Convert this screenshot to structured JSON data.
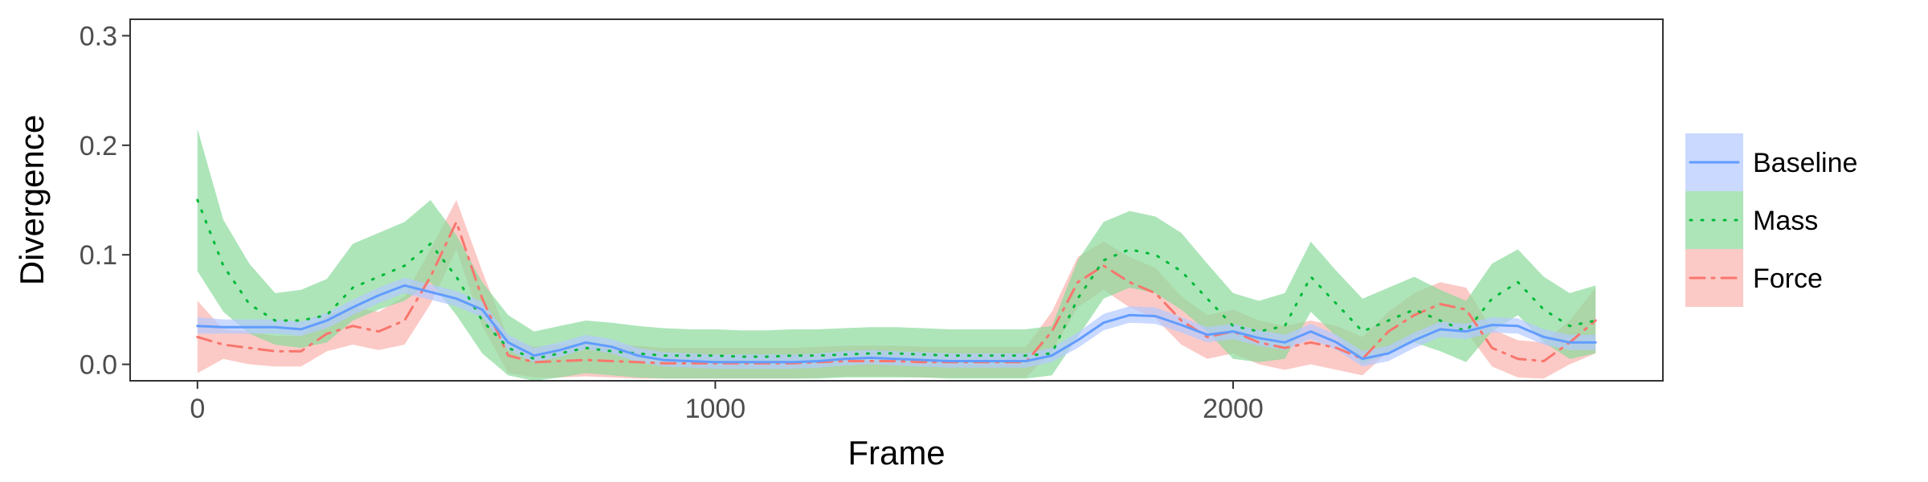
{
  "chart_data": {
    "type": "line",
    "xlabel": "Frame",
    "ylabel": "Divergence",
    "xlim": [
      -130,
      2830
    ],
    "ylim": [
      -0.015,
      0.315
    ],
    "xticks": [
      0,
      1000,
      2000
    ],
    "xtick_labels": [
      "0",
      "1000",
      "2000"
    ],
    "yticks": [
      0.0,
      0.1,
      0.2,
      0.3
    ],
    "ytick_labels": [
      "0.0",
      "0.1",
      "0.2",
      "0.3"
    ],
    "grid": false,
    "legend_position": "right",
    "x": [
      0,
      50,
      100,
      150,
      200,
      250,
      300,
      350,
      400,
      450,
      500,
      550,
      600,
      650,
      700,
      750,
      800,
      850,
      900,
      950,
      1000,
      1050,
      1100,
      1150,
      1200,
      1250,
      1300,
      1350,
      1400,
      1450,
      1500,
      1550,
      1600,
      1650,
      1700,
      1750,
      1800,
      1850,
      1900,
      1950,
      2000,
      2050,
      2100,
      2150,
      2200,
      2250,
      2300,
      2350,
      2400,
      2450,
      2500,
      2550,
      2600,
      2650,
      2700
    ],
    "series": [
      {
        "name": "Baseline",
        "color": "#619CFF",
        "fill": "#B3C9FF",
        "dash": "solid",
        "values": [
          0.035,
          0.034,
          0.034,
          0.034,
          0.032,
          0.04,
          0.052,
          0.063,
          0.072,
          0.066,
          0.06,
          0.05,
          0.02,
          0.008,
          0.013,
          0.02,
          0.016,
          0.008,
          0.004,
          0.003,
          0.002,
          0.002,
          0.002,
          0.002,
          0.003,
          0.005,
          0.006,
          0.005,
          0.004,
          0.003,
          0.003,
          0.003,
          0.003,
          0.008,
          0.022,
          0.038,
          0.045,
          0.044,
          0.036,
          0.027,
          0.03,
          0.024,
          0.02,
          0.03,
          0.02,
          0.005,
          0.01,
          0.022,
          0.032,
          0.03,
          0.036,
          0.035,
          0.025,
          0.02,
          0.02
        ],
        "lower": [
          0.028,
          0.028,
          0.028,
          0.028,
          0.026,
          0.033,
          0.045,
          0.056,
          0.065,
          0.059,
          0.053,
          0.043,
          0.013,
          0.002,
          0.007,
          0.014,
          0.01,
          0.002,
          -0.002,
          -0.003,
          -0.004,
          -0.004,
          -0.004,
          -0.004,
          -0.003,
          -0.001,
          0.0,
          -0.001,
          -0.002,
          -0.003,
          -0.003,
          -0.003,
          -0.003,
          0.002,
          0.015,
          0.031,
          0.038,
          0.037,
          0.029,
          0.02,
          0.023,
          0.017,
          0.013,
          0.023,
          0.013,
          -0.002,
          0.003,
          0.015,
          0.025,
          0.023,
          0.029,
          0.028,
          0.018,
          0.013,
          0.013
        ],
        "upper": [
          0.043,
          0.041,
          0.041,
          0.041,
          0.039,
          0.047,
          0.059,
          0.07,
          0.079,
          0.073,
          0.067,
          0.057,
          0.027,
          0.015,
          0.02,
          0.027,
          0.023,
          0.015,
          0.011,
          0.01,
          0.009,
          0.009,
          0.009,
          0.009,
          0.01,
          0.012,
          0.013,
          0.012,
          0.011,
          0.01,
          0.01,
          0.01,
          0.01,
          0.015,
          0.029,
          0.046,
          0.053,
          0.052,
          0.043,
          0.034,
          0.037,
          0.031,
          0.027,
          0.037,
          0.027,
          0.012,
          0.017,
          0.029,
          0.039,
          0.037,
          0.043,
          0.042,
          0.032,
          0.027,
          0.027
        ]
      },
      {
        "name": "Mass",
        "color": "#00BA38",
        "fill": "#8ADA9B",
        "dash": "dotted",
        "values": [
          0.15,
          0.09,
          0.055,
          0.04,
          0.04,
          0.045,
          0.07,
          0.08,
          0.09,
          0.11,
          0.08,
          0.04,
          0.015,
          0.005,
          0.01,
          0.015,
          0.012,
          0.01,
          0.008,
          0.008,
          0.008,
          0.007,
          0.007,
          0.008,
          0.008,
          0.009,
          0.01,
          0.01,
          0.009,
          0.008,
          0.008,
          0.008,
          0.008,
          0.01,
          0.06,
          0.095,
          0.105,
          0.1,
          0.085,
          0.06,
          0.035,
          0.03,
          0.035,
          0.08,
          0.055,
          0.03,
          0.04,
          0.05,
          0.04,
          0.03,
          0.06,
          0.075,
          0.05,
          0.035,
          0.04
        ],
        "lower": [
          0.085,
          0.048,
          0.028,
          0.018,
          0.015,
          0.02,
          0.04,
          0.05,
          0.058,
          0.075,
          0.045,
          0.01,
          -0.01,
          -0.015,
          -0.012,
          -0.008,
          -0.01,
          -0.012,
          -0.013,
          -0.013,
          -0.013,
          -0.013,
          -0.013,
          -0.013,
          -0.013,
          -0.012,
          -0.012,
          -0.012,
          -0.012,
          -0.013,
          -0.013,
          -0.013,
          -0.013,
          -0.01,
          0.025,
          0.06,
          0.07,
          0.065,
          0.05,
          0.03,
          0.005,
          0.002,
          0.005,
          0.048,
          0.025,
          0.0,
          0.01,
          0.02,
          0.012,
          0.002,
          0.03,
          0.045,
          0.02,
          0.005,
          0.01
        ],
        "upper": [
          0.215,
          0.132,
          0.092,
          0.065,
          0.068,
          0.078,
          0.11,
          0.12,
          0.13,
          0.15,
          0.118,
          0.075,
          0.045,
          0.03,
          0.035,
          0.04,
          0.038,
          0.035,
          0.033,
          0.032,
          0.032,
          0.031,
          0.031,
          0.032,
          0.032,
          0.033,
          0.034,
          0.034,
          0.033,
          0.032,
          0.032,
          0.032,
          0.032,
          0.035,
          0.095,
          0.13,
          0.14,
          0.135,
          0.12,
          0.092,
          0.065,
          0.058,
          0.065,
          0.112,
          0.085,
          0.06,
          0.07,
          0.08,
          0.068,
          0.058,
          0.092,
          0.105,
          0.08,
          0.065,
          0.072
        ]
      },
      {
        "name": "Force",
        "color": "#F8766D",
        "fill": "#F9B3AE",
        "dash": "dashdot",
        "values": [
          0.025,
          0.018,
          0.015,
          0.012,
          0.012,
          0.028,
          0.035,
          0.03,
          0.04,
          0.08,
          0.13,
          0.06,
          0.008,
          0.002,
          0.003,
          0.004,
          0.003,
          0.002,
          0.001,
          0.001,
          0.001,
          0.001,
          0.001,
          0.001,
          0.002,
          0.003,
          0.003,
          0.003,
          0.002,
          0.002,
          0.002,
          0.002,
          0.002,
          0.03,
          0.075,
          0.09,
          0.075,
          0.065,
          0.04,
          0.025,
          0.03,
          0.02,
          0.015,
          0.02,
          0.015,
          0.005,
          0.03,
          0.045,
          0.055,
          0.05,
          0.015,
          0.005,
          0.003,
          0.02,
          0.04
        ],
        "lower": [
          -0.008,
          0.005,
          0.0,
          -0.002,
          -0.002,
          0.012,
          0.018,
          0.013,
          0.018,
          0.055,
          0.105,
          0.035,
          -0.008,
          -0.012,
          -0.012,
          -0.011,
          -0.012,
          -0.013,
          -0.013,
          -0.013,
          -0.013,
          -0.013,
          -0.013,
          -0.013,
          -0.012,
          -0.011,
          -0.011,
          -0.011,
          -0.012,
          -0.012,
          -0.012,
          -0.012,
          -0.012,
          0.012,
          0.052,
          0.068,
          0.052,
          0.042,
          0.018,
          0.005,
          0.01,
          0.0,
          -0.005,
          0.0,
          -0.005,
          -0.01,
          0.012,
          0.025,
          0.035,
          0.03,
          -0.002,
          -0.012,
          -0.013,
          0.0,
          0.01
        ],
        "upper": [
          0.058,
          0.032,
          0.03,
          0.026,
          0.026,
          0.045,
          0.052,
          0.048,
          0.062,
          0.105,
          0.15,
          0.085,
          0.024,
          0.016,
          0.018,
          0.019,
          0.018,
          0.017,
          0.015,
          0.015,
          0.015,
          0.015,
          0.015,
          0.015,
          0.016,
          0.017,
          0.017,
          0.017,
          0.016,
          0.016,
          0.016,
          0.016,
          0.016,
          0.048,
          0.098,
          0.112,
          0.098,
          0.088,
          0.062,
          0.045,
          0.05,
          0.04,
          0.035,
          0.04,
          0.035,
          0.025,
          0.048,
          0.065,
          0.075,
          0.07,
          0.032,
          0.022,
          0.02,
          0.04,
          0.07
        ]
      }
    ]
  }
}
